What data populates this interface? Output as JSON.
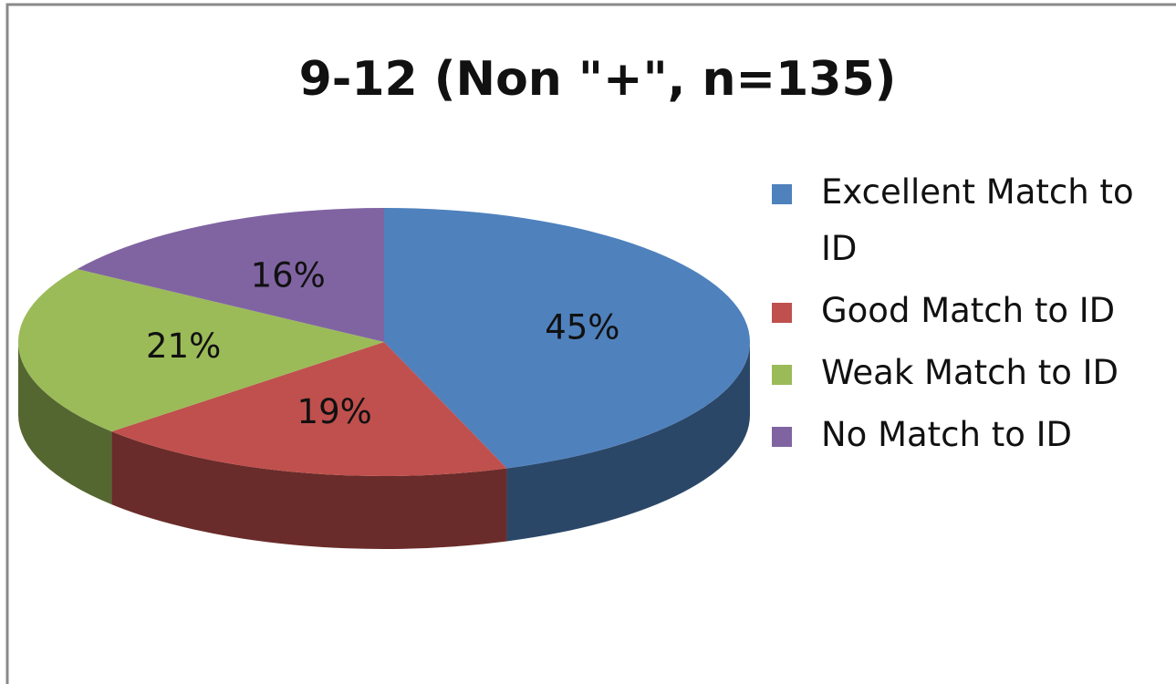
{
  "chart_data": {
    "type": "pie",
    "title": "9-12 (Non \"+\", n=135)",
    "categories": [
      "Excellent Match to ID",
      "Good Match to ID",
      "Weak Match to ID",
      "No Match to ID"
    ],
    "values": [
      45,
      19,
      21,
      16
    ],
    "value_labels": [
      "45%",
      "19%",
      "21%",
      "16%"
    ],
    "colors": [
      "#4f81bd",
      "#c0504d",
      "#9bbb59",
      "#8064a2"
    ],
    "legend": "right"
  }
}
